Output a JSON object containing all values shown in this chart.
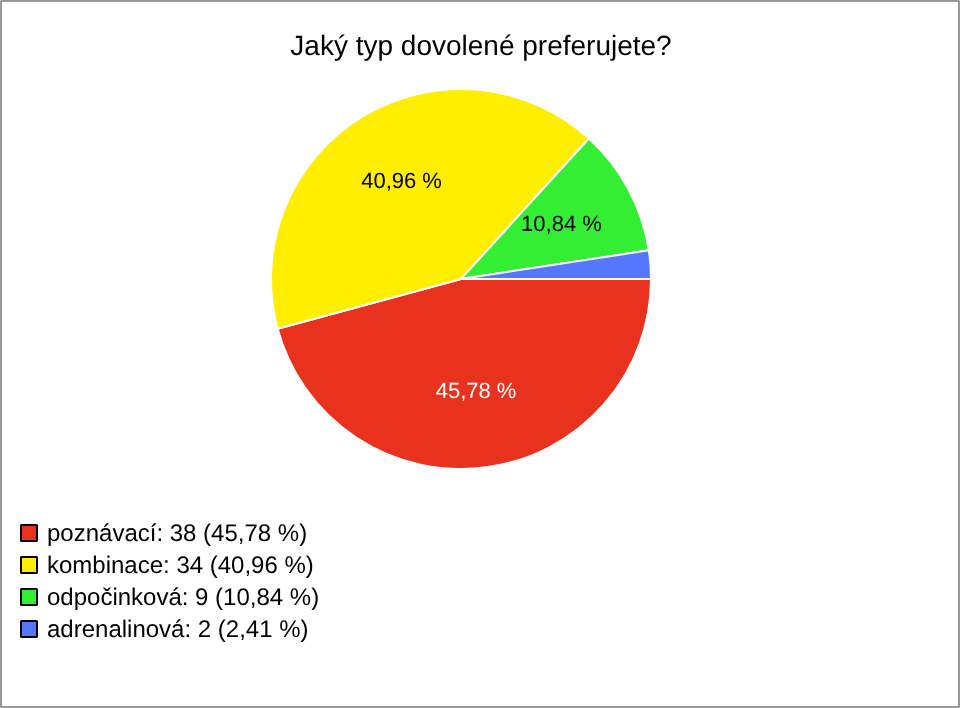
{
  "chart_data": {
    "type": "pie",
    "title": "Jaký typ dovolené preferujete?",
    "categories": [
      "poznávací: 38 (45,78 %)",
      "kombinace: 34 (40,96 %)",
      "odpočinková: 9 (10,84 %)",
      "adrenalinová: 2 (2,41 %)"
    ],
    "values": [
      45.78,
      40.96,
      10.84,
      2.41
    ],
    "colors": [
      "#e8321e",
      "#ffee00",
      "#33ee33",
      "#5577ff"
    ],
    "value_labels": [
      "45,78 %",
      "40,96 %",
      "10,84 %",
      null
    ],
    "legend": "bottom left"
  }
}
